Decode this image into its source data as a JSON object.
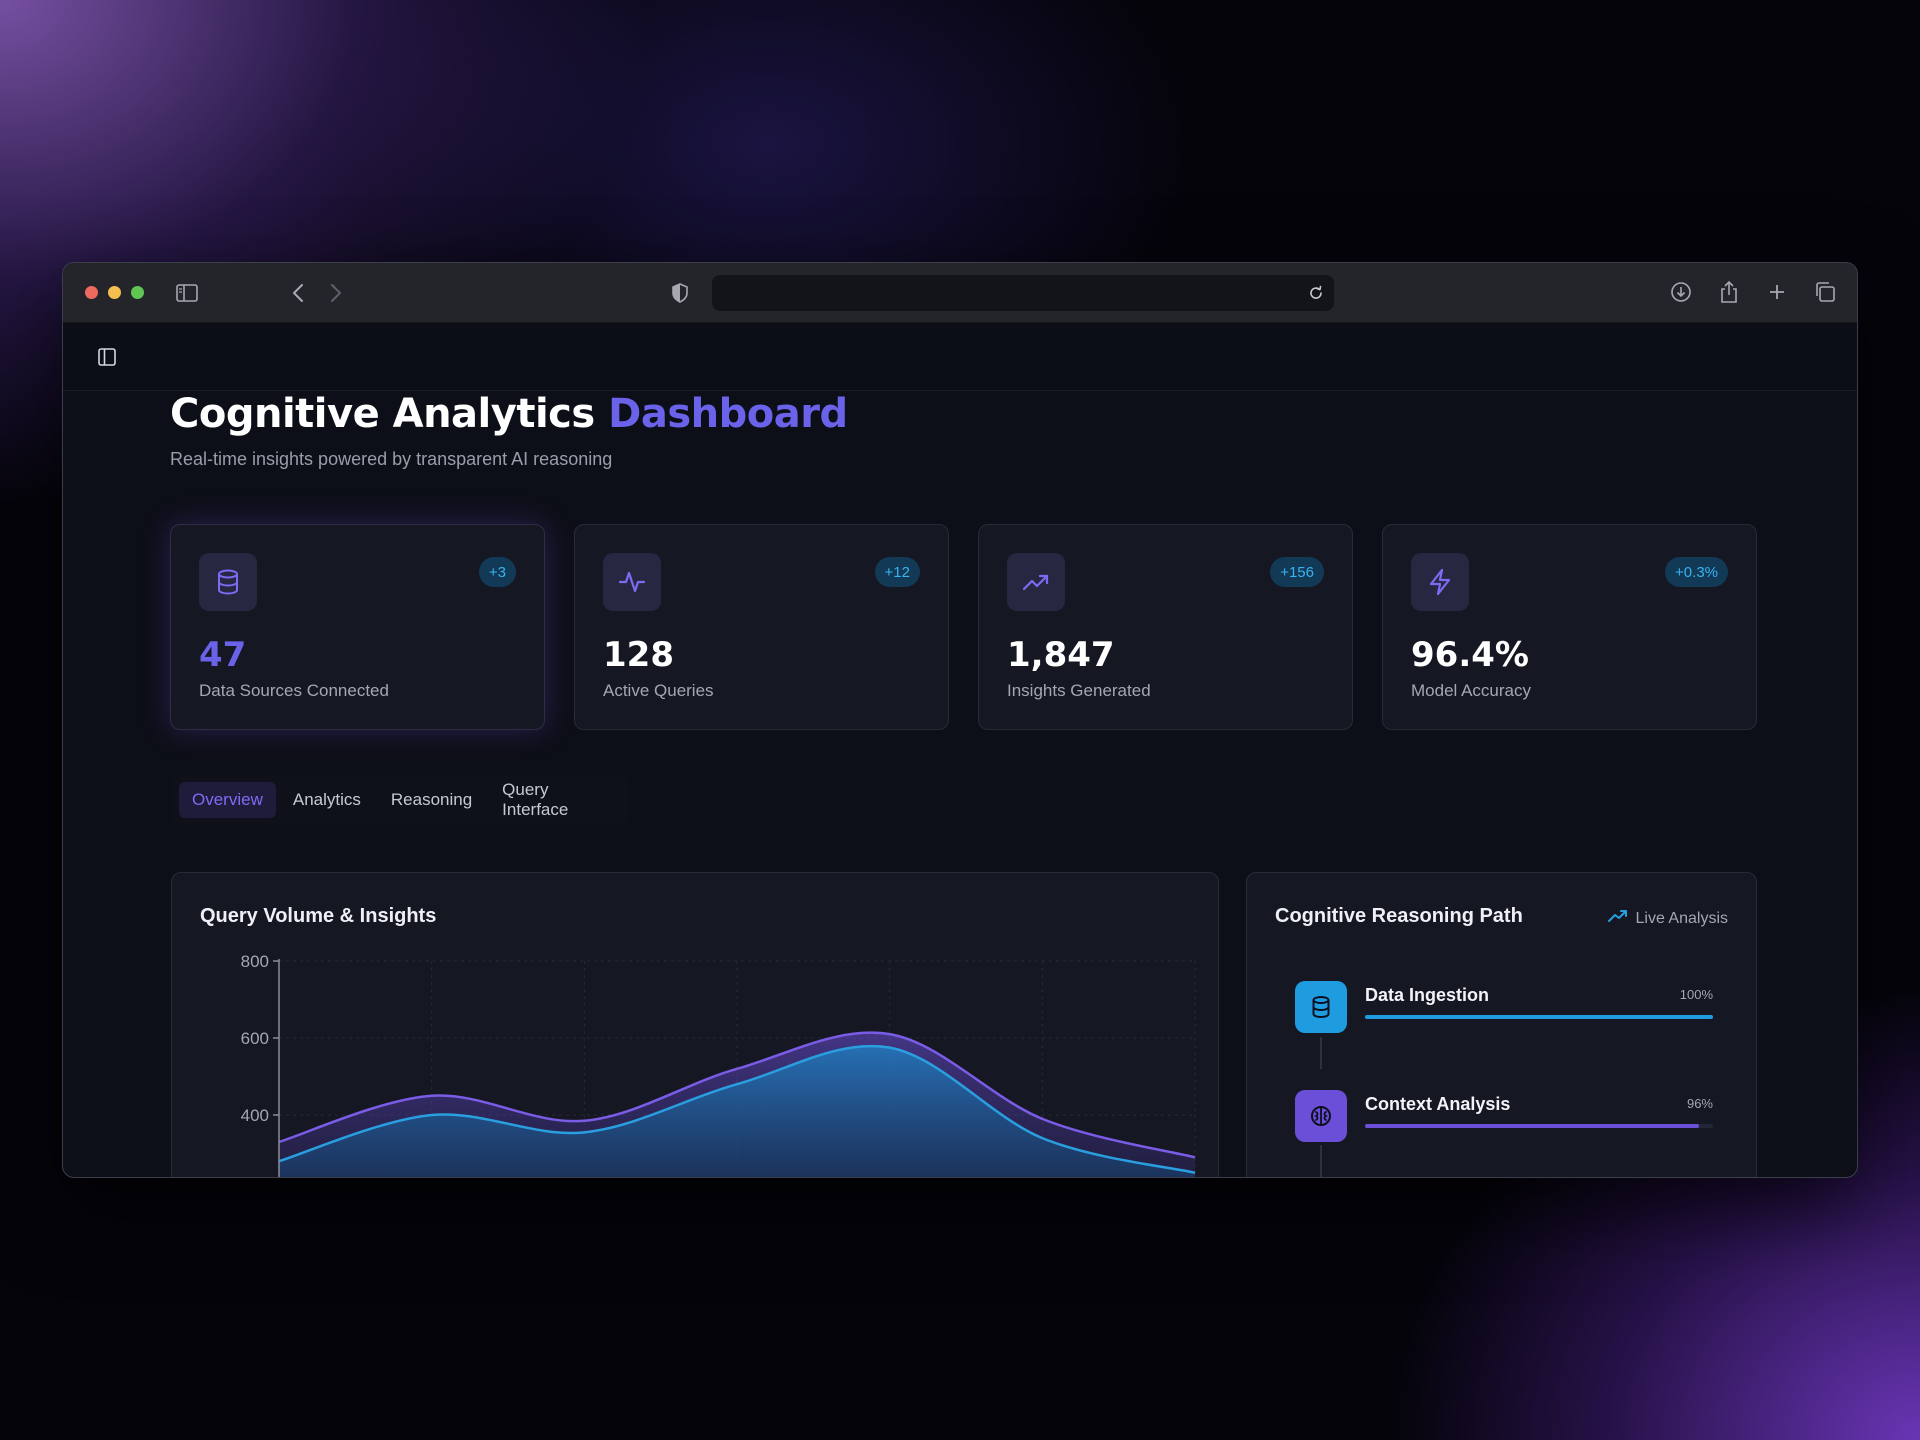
{
  "browser": {
    "traffic_lights": [
      "#ee6a5f",
      "#f5be4f",
      "#61c554"
    ],
    "icons": [
      "sidebar-icon",
      "chevron-left-icon",
      "chevron-right-icon",
      "shield-icon",
      "reload-icon",
      "download-icon",
      "share-icon",
      "plus-icon",
      "tabs-icon"
    ]
  },
  "header": {
    "title_main": "Cognitive Analytics",
    "title_accent": "Dashboard",
    "subtitle": "Real-time insights powered by transparent AI reasoning"
  },
  "stats": [
    {
      "icon": "database-icon",
      "badge": "+3",
      "value": "47",
      "label": "Data Sources Connected"
    },
    {
      "icon": "activity-icon",
      "badge": "+12",
      "value": "128",
      "label": "Active Queries"
    },
    {
      "icon": "trending-up-icon",
      "badge": "+156",
      "value": "1,847",
      "label": "Insights Generated"
    },
    {
      "icon": "zap-icon",
      "badge": "+0.3%",
      "value": "96.4%",
      "label": "Model Accuracy"
    }
  ],
  "tabs": [
    {
      "label": "Overview",
      "active": true
    },
    {
      "label": "Analytics",
      "active": false
    },
    {
      "label": "Reasoning",
      "active": false
    },
    {
      "label": "Query Interface",
      "active": false
    }
  ],
  "chart_panel": {
    "title": "Query Volume & Insights"
  },
  "chart_data": {
    "type": "area",
    "title": "Query Volume & Insights",
    "xlabel": "",
    "ylabel": "",
    "ylim": [
      200,
      800
    ],
    "y_ticks": [
      "800",
      "600",
      "400"
    ],
    "x": [
      0,
      1,
      2,
      3,
      4,
      5,
      6
    ],
    "series": [
      {
        "values": [
          330,
          450,
          385,
          520,
          610,
          390,
          290
        ],
        "color": "#7b5ce6"
      },
      {
        "values": [
          280,
          400,
          355,
          480,
          575,
          340,
          250
        ],
        "color": "#2a9fe0"
      }
    ],
    "grid": true
  },
  "reasoning": {
    "title": "Cognitive Reasoning Path",
    "live_label": "Live Analysis",
    "steps": [
      {
        "icon": "database-icon",
        "name": "Data Ingestion",
        "pct_label": "100%",
        "pct": 100,
        "color": "#1f9be0"
      },
      {
        "icon": "brain-icon",
        "name": "Context Analysis",
        "pct_label": "96%",
        "pct": 96,
        "color": "#6b4fd8"
      }
    ]
  }
}
